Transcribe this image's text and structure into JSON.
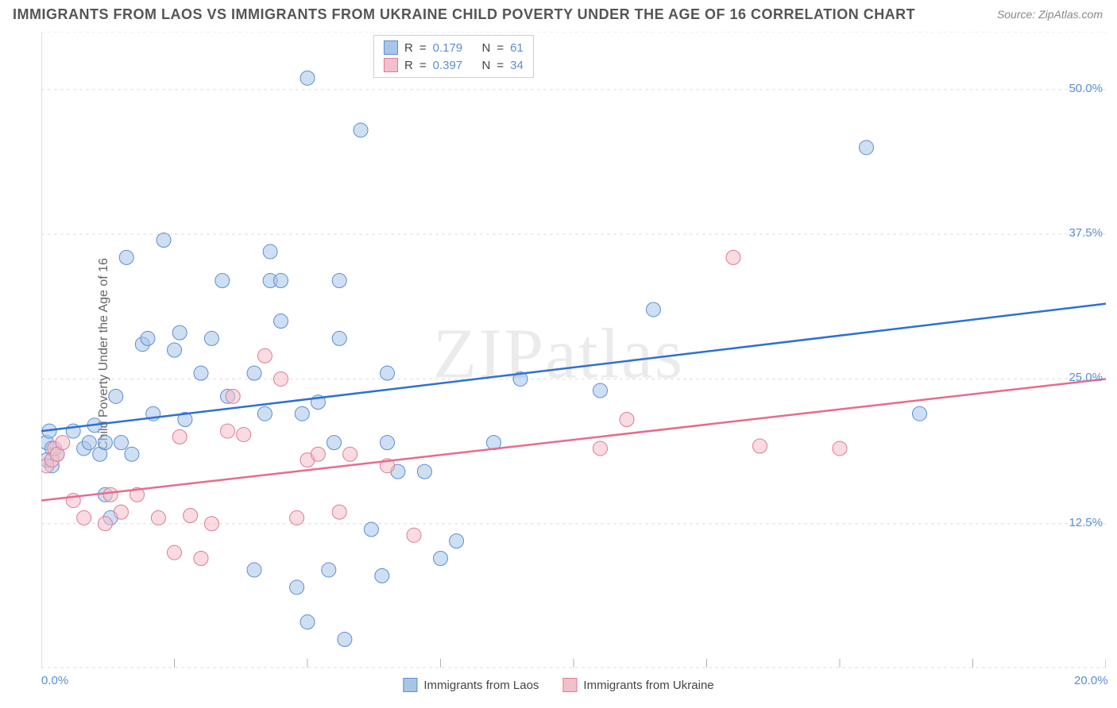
{
  "title": "IMMIGRANTS FROM LAOS VS IMMIGRANTS FROM UKRAINE CHILD POVERTY UNDER THE AGE OF 16 CORRELATION CHART",
  "source": "Source: ZipAtlas.com",
  "y_axis_label": "Child Poverty Under the Age of 16",
  "watermark": "ZIPatlas",
  "chart": {
    "type": "scatter",
    "background_color": "#ffffff",
    "grid_color": "#dddddd",
    "grid_dash": "4,4",
    "axis_tick_color": "#b0b0b0",
    "xlim": [
      0,
      20
    ],
    "ylim": [
      0,
      55
    ],
    "x_ticks": [
      0,
      2.5,
      5,
      7.5,
      10,
      12.5,
      15,
      17.5,
      20
    ],
    "x_tick_labels": {
      "0": "0.0%",
      "20": "20.0%"
    },
    "y_gridlines": [
      12.5,
      25,
      37.5,
      50,
      55
    ],
    "y_tick_labels": {
      "12.5": "12.5%",
      "25": "25.0%",
      "37.5": "37.5%",
      "50": "50.0%"
    },
    "marker_radius": 9,
    "marker_opacity": 0.55,
    "marker_stroke_width": 1,
    "line_width": 2.5,
    "series": [
      {
        "name": "Immigrants from Laos",
        "fill_color": "#a8c5e8",
        "stroke_color": "#5b8dd6",
        "line_color": "#2e6fd6",
        "R": "0.179",
        "N": "61",
        "trend": {
          "x1": 0,
          "y1": 20.5,
          "x2": 20,
          "y2": 31.5
        },
        "points": [
          [
            0.1,
            18
          ],
          [
            0.1,
            19.5
          ],
          [
            0.15,
            20.5
          ],
          [
            0.2,
            17.5
          ],
          [
            0.2,
            19
          ],
          [
            0.3,
            18.5
          ],
          [
            0.6,
            20.5
          ],
          [
            0.8,
            19
          ],
          [
            0.9,
            19.5
          ],
          [
            1.0,
            21
          ],
          [
            1.1,
            18.5
          ],
          [
            1.2,
            15
          ],
          [
            1.2,
            19.5
          ],
          [
            1.3,
            13
          ],
          [
            1.4,
            23.5
          ],
          [
            1.5,
            19.5
          ],
          [
            1.6,
            35.5
          ],
          [
            1.7,
            18.5
          ],
          [
            1.9,
            28
          ],
          [
            2.0,
            28.5
          ],
          [
            2.1,
            22
          ],
          [
            2.3,
            37
          ],
          [
            2.5,
            27.5
          ],
          [
            2.6,
            29
          ],
          [
            2.7,
            21.5
          ],
          [
            3.0,
            25.5
          ],
          [
            3.2,
            28.5
          ],
          [
            3.4,
            33.5
          ],
          [
            3.5,
            23.5
          ],
          [
            4.0,
            8.5
          ],
          [
            4.0,
            25.5
          ],
          [
            4.2,
            22
          ],
          [
            4.3,
            36
          ],
          [
            4.3,
            33.5
          ],
          [
            4.5,
            33.5
          ],
          [
            4.5,
            30
          ],
          [
            4.8,
            7
          ],
          [
            4.9,
            22
          ],
          [
            5.0,
            4
          ],
          [
            5.0,
            51
          ],
          [
            5.2,
            23
          ],
          [
            5.4,
            8.5
          ],
          [
            5.5,
            19.5
          ],
          [
            5.6,
            28.5
          ],
          [
            5.6,
            33.5
          ],
          [
            5.7,
            2.5
          ],
          [
            6.0,
            46.5
          ],
          [
            6.2,
            12
          ],
          [
            6.4,
            8
          ],
          [
            6.5,
            19.5
          ],
          [
            6.5,
            25.5
          ],
          [
            6.7,
            17
          ],
          [
            7.2,
            17
          ],
          [
            7.5,
            9.5
          ],
          [
            7.8,
            11
          ],
          [
            8.5,
            19.5
          ],
          [
            9.0,
            25
          ],
          [
            10.5,
            24
          ],
          [
            11.5,
            31
          ],
          [
            15.5,
            45
          ],
          [
            16.5,
            22
          ]
        ]
      },
      {
        "name": "Immigrants from Ukraine",
        "fill_color": "#f2c0ca",
        "stroke_color": "#e07a92",
        "line_color": "#e86b8c",
        "R": "0.397",
        "N": "34",
        "trend": {
          "x1": 0,
          "y1": 14.5,
          "x2": 20,
          "y2": 25
        },
        "points": [
          [
            0.1,
            17.5
          ],
          [
            0.2,
            18
          ],
          [
            0.25,
            19
          ],
          [
            0.3,
            18.5
          ],
          [
            0.4,
            19.5
          ],
          [
            0.6,
            14.5
          ],
          [
            0.8,
            13
          ],
          [
            1.2,
            12.5
          ],
          [
            1.3,
            15
          ],
          [
            1.5,
            13.5
          ],
          [
            1.8,
            15
          ],
          [
            2.2,
            13
          ],
          [
            2.5,
            10
          ],
          [
            2.6,
            20
          ],
          [
            2.8,
            13.2
          ],
          [
            3.0,
            9.5
          ],
          [
            3.2,
            12.5
          ],
          [
            3.5,
            20.5
          ],
          [
            3.6,
            23.5
          ],
          [
            3.8,
            20.2
          ],
          [
            4.2,
            27
          ],
          [
            4.5,
            25
          ],
          [
            4.8,
            13
          ],
          [
            5.0,
            18
          ],
          [
            5.2,
            18.5
          ],
          [
            5.6,
            13.5
          ],
          [
            5.8,
            18.5
          ],
          [
            6.5,
            17.5
          ],
          [
            7.0,
            11.5
          ],
          [
            10.5,
            19
          ],
          [
            11.0,
            21.5
          ],
          [
            13.0,
            35.5
          ],
          [
            13.5,
            19.2
          ],
          [
            15.0,
            19
          ]
        ]
      }
    ]
  },
  "stats_legend": {
    "rows": [
      {
        "series_index": 0,
        "r_label": "R",
        "r_val": "0.179",
        "n_label": "N",
        "n_val": "61"
      },
      {
        "series_index": 1,
        "r_label": "R",
        "r_val": "0.397",
        "n_label": "N",
        "n_val": "34"
      }
    ]
  },
  "bottom_legend": {
    "items": [
      {
        "series_index": 0,
        "label": "Immigrants from Laos"
      },
      {
        "series_index": 1,
        "label": "Immigrants from Ukraine"
      }
    ]
  }
}
